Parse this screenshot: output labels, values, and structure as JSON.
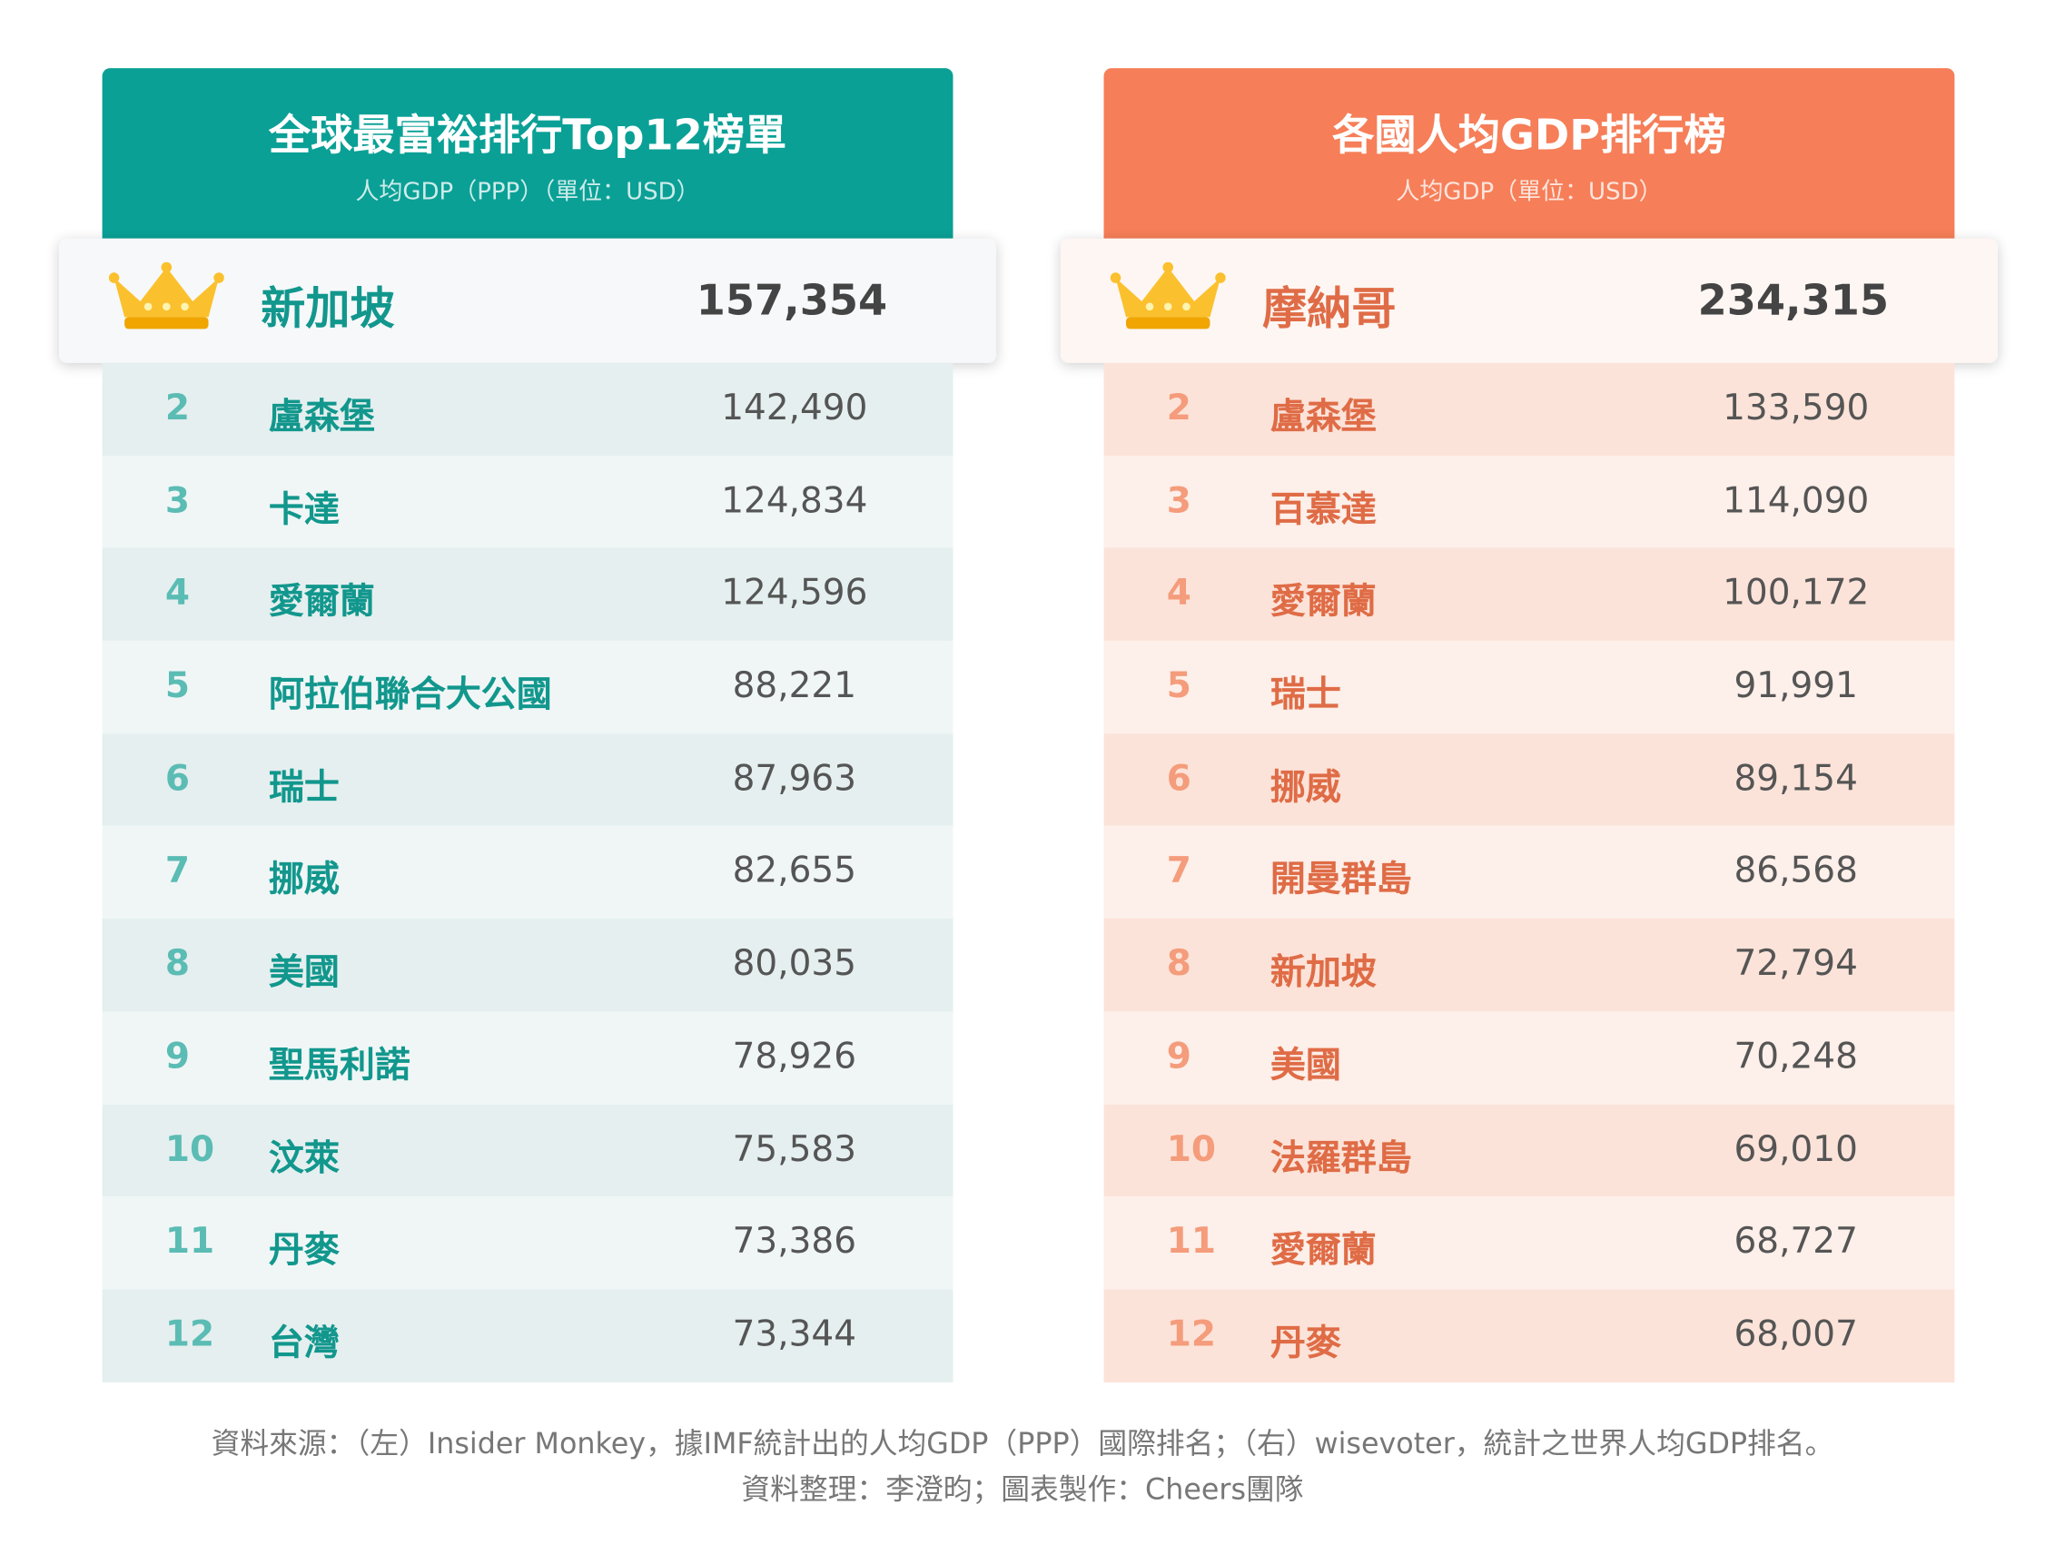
{
  "left": {
    "title": "全球最富裕排行Top12榜單",
    "subtitle": "人均GDP（PPP）（單位：USD）",
    "first": {
      "country": "新加坡",
      "value": "157,354"
    },
    "rows": [
      [
        "2",
        "盧森堡",
        "142,490"
      ],
      [
        "3",
        "卡達",
        "124,834"
      ],
      [
        "4",
        "愛爾蘭",
        "124,596"
      ],
      [
        "5",
        "阿拉伯聯合大公國",
        "88,221"
      ],
      [
        "6",
        "瑞士",
        "87,963"
      ],
      [
        "7",
        "挪威",
        "82,655"
      ],
      [
        "8",
        "美國",
        "80,035"
      ],
      [
        "9",
        "聖馬利諾",
        "78,926"
      ],
      [
        "10",
        "汶萊",
        "75,583"
      ],
      [
        "11",
        "丹麥",
        "73,386"
      ],
      [
        "12",
        "台灣",
        "73,344"
      ]
    ]
  },
  "right": {
    "title": "各國人均GDP排行榜",
    "subtitle": "人均GDP（單位：USD）",
    "first": {
      "country": "摩納哥",
      "value": "234,315"
    },
    "rows": [
      [
        "2",
        "盧森堡",
        "133,590"
      ],
      [
        "3",
        "百慕達",
        "114,090"
      ],
      [
        "4",
        "愛爾蘭",
        "100,172"
      ],
      [
        "5",
        "瑞士",
        "91,991"
      ],
      [
        "6",
        "挪威",
        "89,154"
      ],
      [
        "7",
        "開曼群島",
        "86,568"
      ],
      [
        "8",
        "新加坡",
        "72,794"
      ],
      [
        "9",
        "美國",
        "70,248"
      ],
      [
        "10",
        "法羅群島",
        "69,010"
      ],
      [
        "11",
        "愛爾蘭",
        "68,727"
      ],
      [
        "12",
        "丹麥",
        "68,007"
      ]
    ]
  },
  "footer": {
    "source": "資料來源：（左）Insider Monkey，據IMF統計出的人均GDP（PPP）國際排名；（右）wisevoter，統計之世界人均GDP排名。",
    "credit": "資料整理：李澄昀；圖表製作：Cheers團隊"
  }
}
